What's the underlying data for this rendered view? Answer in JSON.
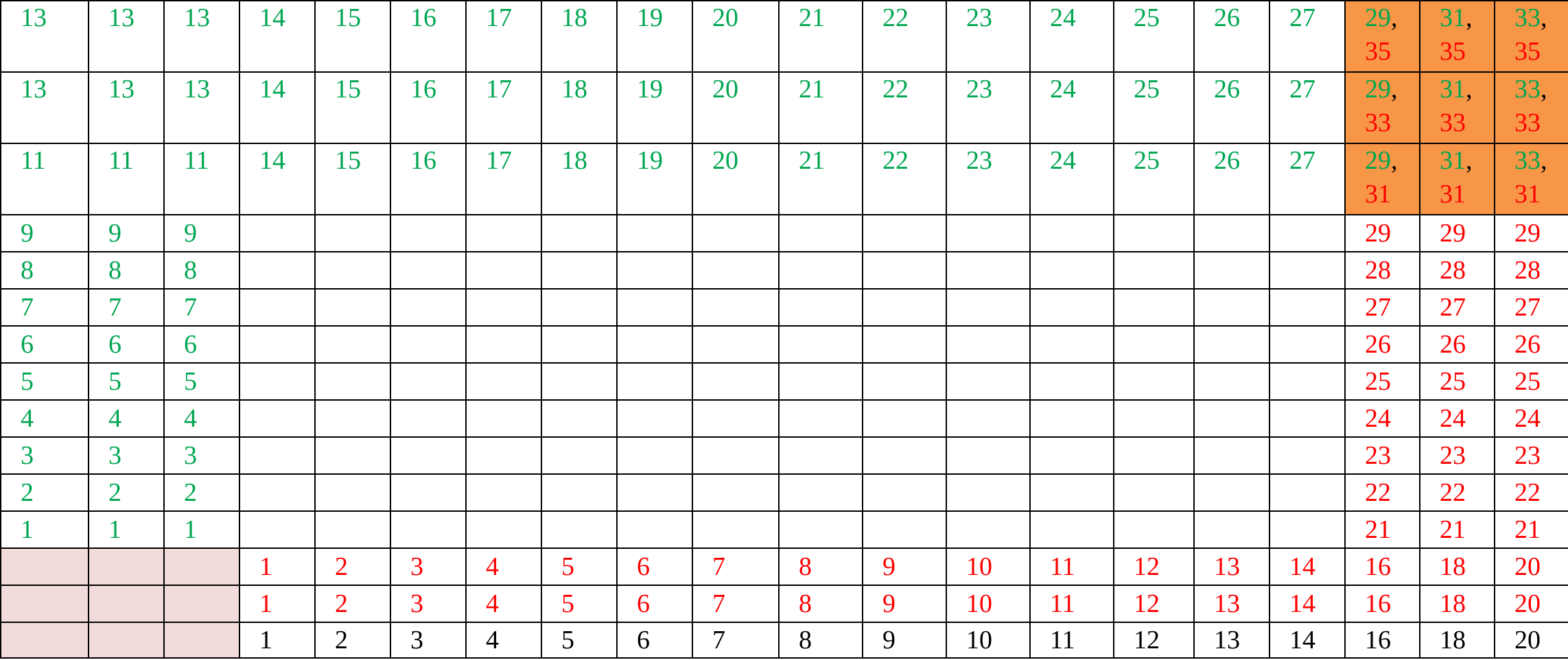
{
  "colors": {
    "green": "#00a651",
    "red": "#ff0000",
    "black": "#000000",
    "highlight": "#f79646",
    "pink": "#f2dcdb"
  },
  "rows": [
    [
      {
        "v": "13",
        "c": "g"
      },
      {
        "v": "13",
        "c": "g"
      },
      {
        "v": "13",
        "c": "g"
      },
      {
        "v": "14",
        "c": "g"
      },
      {
        "v": "15",
        "c": "g"
      },
      {
        "v": "16",
        "c": "g"
      },
      {
        "v": "17",
        "c": "g"
      },
      {
        "v": "18",
        "c": "g"
      },
      {
        "v": "19",
        "c": "g"
      },
      {
        "v": "20",
        "c": "g"
      },
      {
        "v": "21",
        "c": "g"
      },
      {
        "v": "22",
        "c": "g"
      },
      {
        "v": "23",
        "c": "g"
      },
      {
        "v": "24",
        "c": "g"
      },
      {
        "v": "25",
        "c": "g"
      },
      {
        "v": "26",
        "c": "g"
      },
      {
        "v": "27",
        "c": "g"
      },
      {
        "a": "29",
        "b": "35",
        "bg": "hl"
      },
      {
        "a": "31",
        "b": "35",
        "bg": "hl"
      },
      {
        "a": "33",
        "b": "35",
        "bg": "hl"
      }
    ],
    [
      {
        "v": "13",
        "c": "g"
      },
      {
        "v": "13",
        "c": "g"
      },
      {
        "v": "13",
        "c": "g"
      },
      {
        "v": "14",
        "c": "g"
      },
      {
        "v": "15",
        "c": "g"
      },
      {
        "v": "16",
        "c": "g"
      },
      {
        "v": "17",
        "c": "g"
      },
      {
        "v": "18",
        "c": "g"
      },
      {
        "v": "19",
        "c": "g"
      },
      {
        "v": "20",
        "c": "g"
      },
      {
        "v": "21",
        "c": "g"
      },
      {
        "v": "22",
        "c": "g"
      },
      {
        "v": "23",
        "c": "g"
      },
      {
        "v": "24",
        "c": "g"
      },
      {
        "v": "25",
        "c": "g"
      },
      {
        "v": "26",
        "c": "g"
      },
      {
        "v": "27",
        "c": "g"
      },
      {
        "a": "29",
        "b": "33",
        "bg": "hl"
      },
      {
        "a": "31",
        "b": "33",
        "bg": "hl"
      },
      {
        "a": "33",
        "b": "33",
        "bg": "hl"
      }
    ],
    [
      {
        "v": "11",
        "c": "g"
      },
      {
        "v": "11",
        "c": "g"
      },
      {
        "v": "11",
        "c": "g"
      },
      {
        "v": "14",
        "c": "g"
      },
      {
        "v": "15",
        "c": "g"
      },
      {
        "v": "16",
        "c": "g"
      },
      {
        "v": "17",
        "c": "g"
      },
      {
        "v": "18",
        "c": "g"
      },
      {
        "v": "19",
        "c": "g"
      },
      {
        "v": "20",
        "c": "g"
      },
      {
        "v": "21",
        "c": "g"
      },
      {
        "v": "22",
        "c": "g"
      },
      {
        "v": "23",
        "c": "g"
      },
      {
        "v": "24",
        "c": "g"
      },
      {
        "v": "25",
        "c": "g"
      },
      {
        "v": "26",
        "c": "g"
      },
      {
        "v": "27",
        "c": "g"
      },
      {
        "a": "29",
        "b": "31",
        "bg": "hl"
      },
      {
        "a": "31",
        "b": "31",
        "bg": "hl"
      },
      {
        "a": "33",
        "b": "31",
        "bg": "hl"
      }
    ],
    [
      {
        "v": "9",
        "c": "g"
      },
      {
        "v": "9",
        "c": "g"
      },
      {
        "v": "9",
        "c": "g"
      },
      {},
      {},
      {},
      {},
      {},
      {},
      {},
      {},
      {},
      {},
      {},
      {},
      {},
      {},
      {
        "v": "29",
        "c": "r"
      },
      {
        "v": "29",
        "c": "r"
      },
      {
        "v": "29",
        "c": "r"
      }
    ],
    [
      {
        "v": "8",
        "c": "g"
      },
      {
        "v": "8",
        "c": "g"
      },
      {
        "v": "8",
        "c": "g"
      },
      {},
      {},
      {},
      {},
      {},
      {},
      {},
      {},
      {},
      {},
      {},
      {},
      {},
      {},
      {
        "v": "28",
        "c": "r"
      },
      {
        "v": "28",
        "c": "r"
      },
      {
        "v": "28",
        "c": "r"
      }
    ],
    [
      {
        "v": "7",
        "c": "g"
      },
      {
        "v": "7",
        "c": "g"
      },
      {
        "v": "7",
        "c": "g"
      },
      {},
      {},
      {},
      {},
      {},
      {},
      {},
      {},
      {},
      {},
      {},
      {},
      {},
      {},
      {
        "v": "27",
        "c": "r"
      },
      {
        "v": "27",
        "c": "r"
      },
      {
        "v": "27",
        "c": "r"
      }
    ],
    [
      {
        "v": "6",
        "c": "g"
      },
      {
        "v": "6",
        "c": "g"
      },
      {
        "v": "6",
        "c": "g"
      },
      {},
      {},
      {},
      {},
      {},
      {},
      {},
      {},
      {},
      {},
      {},
      {},
      {},
      {},
      {
        "v": "26",
        "c": "r"
      },
      {
        "v": "26",
        "c": "r"
      },
      {
        "v": "26",
        "c": "r"
      }
    ],
    [
      {
        "v": "5",
        "c": "g"
      },
      {
        "v": "5",
        "c": "g"
      },
      {
        "v": "5",
        "c": "g"
      },
      {},
      {},
      {},
      {},
      {},
      {},
      {},
      {},
      {},
      {},
      {},
      {},
      {},
      {},
      {
        "v": "25",
        "c": "r"
      },
      {
        "v": "25",
        "c": "r"
      },
      {
        "v": "25",
        "c": "r"
      }
    ],
    [
      {
        "v": "4",
        "c": "g"
      },
      {
        "v": "4",
        "c": "g"
      },
      {
        "v": "4",
        "c": "g"
      },
      {},
      {},
      {},
      {},
      {},
      {},
      {},
      {},
      {},
      {},
      {},
      {},
      {},
      {},
      {
        "v": "24",
        "c": "r"
      },
      {
        "v": "24",
        "c": "r"
      },
      {
        "v": "24",
        "c": "r"
      }
    ],
    [
      {
        "v": "3",
        "c": "g"
      },
      {
        "v": "3",
        "c": "g"
      },
      {
        "v": "3",
        "c": "g"
      },
      {},
      {},
      {},
      {},
      {},
      {},
      {},
      {},
      {},
      {},
      {},
      {},
      {},
      {},
      {
        "v": "23",
        "c": "r"
      },
      {
        "v": "23",
        "c": "r"
      },
      {
        "v": "23",
        "c": "r"
      }
    ],
    [
      {
        "v": "2",
        "c": "g"
      },
      {
        "v": "2",
        "c": "g"
      },
      {
        "v": "2",
        "c": "g"
      },
      {},
      {},
      {},
      {},
      {},
      {},
      {},
      {},
      {},
      {},
      {},
      {},
      {},
      {},
      {
        "v": "22",
        "c": "r"
      },
      {
        "v": "22",
        "c": "r"
      },
      {
        "v": "22",
        "c": "r"
      }
    ],
    [
      {
        "v": "1",
        "c": "g"
      },
      {
        "v": "1",
        "c": "g"
      },
      {
        "v": "1",
        "c": "g"
      },
      {},
      {},
      {},
      {},
      {},
      {},
      {},
      {},
      {},
      {},
      {},
      {},
      {},
      {},
      {
        "v": "21",
        "c": "r"
      },
      {
        "v": "21",
        "c": "r"
      },
      {
        "v": "21",
        "c": "r"
      }
    ],
    [
      {
        "bg": "pk"
      },
      {
        "bg": "pk"
      },
      {
        "bg": "pk"
      },
      {
        "v": "1",
        "c": "r"
      },
      {
        "v": "2",
        "c": "r"
      },
      {
        "v": "3",
        "c": "r"
      },
      {
        "v": "4",
        "c": "r"
      },
      {
        "v": "5",
        "c": "r"
      },
      {
        "v": "6",
        "c": "r"
      },
      {
        "v": "7",
        "c": "r"
      },
      {
        "v": "8",
        "c": "r"
      },
      {
        "v": "9",
        "c": "r"
      },
      {
        "v": "10",
        "c": "r"
      },
      {
        "v": "11",
        "c": "r"
      },
      {
        "v": "12",
        "c": "r"
      },
      {
        "v": "13",
        "c": "r"
      },
      {
        "v": "14",
        "c": "r"
      },
      {
        "v": "16",
        "c": "r"
      },
      {
        "v": "18",
        "c": "r"
      },
      {
        "v": "20",
        "c": "r"
      }
    ],
    [
      {
        "bg": "pk"
      },
      {
        "bg": "pk"
      },
      {
        "bg": "pk"
      },
      {
        "v": "1",
        "c": "r"
      },
      {
        "v": "2",
        "c": "r"
      },
      {
        "v": "3",
        "c": "r"
      },
      {
        "v": "4",
        "c": "r"
      },
      {
        "v": "5",
        "c": "r"
      },
      {
        "v": "6",
        "c": "r"
      },
      {
        "v": "7",
        "c": "r"
      },
      {
        "v": "8",
        "c": "r"
      },
      {
        "v": "9",
        "c": "r"
      },
      {
        "v": "10",
        "c": "r"
      },
      {
        "v": "11",
        "c": "r"
      },
      {
        "v": "12",
        "c": "r"
      },
      {
        "v": "13",
        "c": "r"
      },
      {
        "v": "14",
        "c": "r"
      },
      {
        "v": "16",
        "c": "r"
      },
      {
        "v": "18",
        "c": "r"
      },
      {
        "v": "20",
        "c": "r"
      }
    ],
    [
      {
        "bg": "pk"
      },
      {
        "bg": "pk"
      },
      {
        "bg": "pk"
      },
      {
        "v": "1",
        "c": "k"
      },
      {
        "v": "2",
        "c": "k"
      },
      {
        "v": "3",
        "c": "k"
      },
      {
        "v": "4",
        "c": "k"
      },
      {
        "v": "5",
        "c": "k"
      },
      {
        "v": "6",
        "c": "k"
      },
      {
        "v": "7",
        "c": "k"
      },
      {
        "v": "8",
        "c": "k"
      },
      {
        "v": "9",
        "c": "k"
      },
      {
        "v": "10",
        "c": "k"
      },
      {
        "v": "11",
        "c": "k"
      },
      {
        "v": "12",
        "c": "k"
      },
      {
        "v": "13",
        "c": "k"
      },
      {
        "v": "14",
        "c": "k"
      },
      {
        "v": "16",
        "c": "k"
      },
      {
        "v": "18",
        "c": "k"
      },
      {
        "v": "20",
        "c": "k"
      }
    ]
  ]
}
